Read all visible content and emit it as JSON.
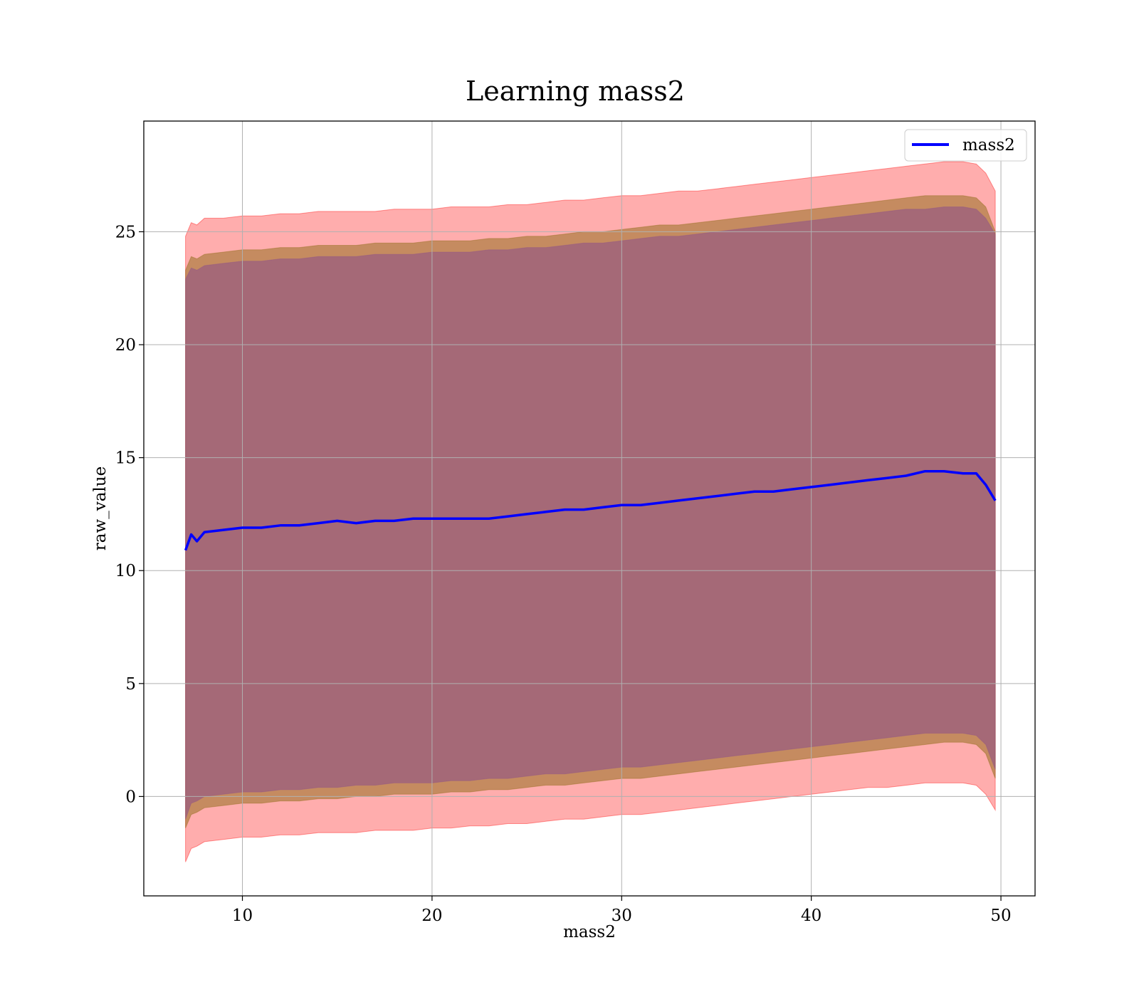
{
  "chart_data": {
    "type": "line",
    "title": "Learning mass2",
    "xlabel": "mass2",
    "ylabel": "raw_value",
    "xlim": [
      4.8,
      51.8
    ],
    "ylim": [
      -4.4,
      29.9
    ],
    "x_ticks": [
      10,
      20,
      30,
      40,
      50
    ],
    "y_ticks": [
      0,
      5,
      10,
      15,
      20,
      25
    ],
    "grid": true,
    "legend_position": "top-right",
    "colors": {
      "line": "#0000ff",
      "band_outer": "#ff0000",
      "band_middle": "#8b6914",
      "band_inner": "#8b4f8b"
    },
    "series": [
      {
        "name": "mass2",
        "x": [
          7.0,
          7.3,
          7.6,
          8,
          9,
          10,
          11,
          12,
          13,
          14,
          15,
          16,
          17,
          18,
          19,
          20,
          21,
          22,
          23,
          24,
          25,
          26,
          27,
          28,
          29,
          30,
          31,
          32,
          33,
          34,
          35,
          36,
          37,
          38,
          39,
          40,
          41,
          42,
          43,
          44,
          45,
          46,
          47,
          48,
          48.7,
          49.2,
          49.7
        ],
        "y": [
          10.9,
          11.6,
          11.3,
          11.7,
          11.8,
          11.9,
          11.9,
          12.0,
          12.0,
          12.1,
          12.2,
          12.1,
          12.2,
          12.2,
          12.3,
          12.3,
          12.3,
          12.3,
          12.3,
          12.4,
          12.5,
          12.6,
          12.7,
          12.7,
          12.8,
          12.9,
          12.9,
          13.0,
          13.1,
          13.2,
          13.3,
          13.4,
          13.5,
          13.5,
          13.6,
          13.7,
          13.8,
          13.9,
          14.0,
          14.1,
          14.2,
          14.4,
          14.4,
          14.3,
          14.3,
          13.8,
          13.1
        ]
      }
    ],
    "bands": [
      {
        "x": [
          7.0,
          7.3,
          7.6,
          8,
          9,
          10,
          11,
          12,
          13,
          14,
          15,
          16,
          17,
          18,
          19,
          20,
          21,
          22,
          23,
          24,
          25,
          26,
          27,
          28,
          29,
          30,
          31,
          32,
          33,
          34,
          35,
          36,
          37,
          38,
          39,
          40,
          41,
          42,
          43,
          44,
          45,
          46,
          47,
          48,
          48.7,
          49.2,
          49.7
        ],
        "upper": [
          24.8,
          25.4,
          25.3,
          25.6,
          25.6,
          25.7,
          25.7,
          25.8,
          25.8,
          25.9,
          25.9,
          25.9,
          25.9,
          26.0,
          26.0,
          26.0,
          26.1,
          26.1,
          26.1,
          26.2,
          26.2,
          26.3,
          26.4,
          26.4,
          26.5,
          26.6,
          26.6,
          26.7,
          26.8,
          26.8,
          26.9,
          27.0,
          27.1,
          27.2,
          27.3,
          27.4,
          27.5,
          27.6,
          27.7,
          27.8,
          27.9,
          28.0,
          28.1,
          28.1,
          28.0,
          27.6,
          26.8
        ],
        "lower": [
          -2.9,
          -2.3,
          -2.2,
          -2.0,
          -1.9,
          -1.8,
          -1.8,
          -1.7,
          -1.7,
          -1.6,
          -1.6,
          -1.6,
          -1.5,
          -1.5,
          -1.5,
          -1.4,
          -1.4,
          -1.3,
          -1.3,
          -1.2,
          -1.2,
          -1.1,
          -1.0,
          -1.0,
          -0.9,
          -0.8,
          -0.8,
          -0.7,
          -0.6,
          -0.5,
          -0.4,
          -0.3,
          -0.2,
          -0.1,
          0.0,
          0.1,
          0.2,
          0.3,
          0.4,
          0.4,
          0.5,
          0.6,
          0.6,
          0.6,
          0.5,
          0.1,
          -0.6
        ]
      },
      {
        "x": [
          7.0,
          7.3,
          7.6,
          8,
          9,
          10,
          11,
          12,
          13,
          14,
          15,
          16,
          17,
          18,
          19,
          20,
          21,
          22,
          23,
          24,
          25,
          26,
          27,
          28,
          29,
          30,
          31,
          32,
          33,
          34,
          35,
          36,
          37,
          38,
          39,
          40,
          41,
          42,
          43,
          44,
          45,
          46,
          47,
          48,
          48.7,
          49.2,
          49.7
        ],
        "upper": [
          23.3,
          23.9,
          23.8,
          24.0,
          24.1,
          24.2,
          24.2,
          24.3,
          24.3,
          24.4,
          24.4,
          24.4,
          24.5,
          24.5,
          24.5,
          24.6,
          24.6,
          24.6,
          24.7,
          24.7,
          24.8,
          24.8,
          24.9,
          25.0,
          25.0,
          25.1,
          25.2,
          25.3,
          25.3,
          25.4,
          25.5,
          25.6,
          25.7,
          25.8,
          25.9,
          26.0,
          26.1,
          26.2,
          26.3,
          26.4,
          26.5,
          26.6,
          26.6,
          26.6,
          26.5,
          26.1,
          25.0
        ],
        "lower": [
          -1.4,
          -0.8,
          -0.7,
          -0.5,
          -0.4,
          -0.3,
          -0.3,
          -0.2,
          -0.2,
          -0.1,
          -0.1,
          0.0,
          0.0,
          0.1,
          0.1,
          0.1,
          0.2,
          0.2,
          0.3,
          0.3,
          0.4,
          0.5,
          0.5,
          0.6,
          0.7,
          0.8,
          0.8,
          0.9,
          1.0,
          1.1,
          1.2,
          1.3,
          1.4,
          1.5,
          1.6,
          1.7,
          1.8,
          1.9,
          2.0,
          2.1,
          2.2,
          2.3,
          2.4,
          2.4,
          2.3,
          1.9,
          0.8
        ]
      },
      {
        "x": [
          7.0,
          7.3,
          7.6,
          8,
          9,
          10,
          11,
          12,
          13,
          14,
          15,
          16,
          17,
          18,
          19,
          20,
          21,
          22,
          23,
          24,
          25,
          26,
          27,
          28,
          29,
          30,
          31,
          32,
          33,
          34,
          35,
          36,
          37,
          38,
          39,
          40,
          41,
          42,
          43,
          44,
          45,
          46,
          47,
          48,
          48.7,
          49.2,
          49.7
        ],
        "upper": [
          22.9,
          23.4,
          23.3,
          23.5,
          23.6,
          23.7,
          23.7,
          23.8,
          23.8,
          23.9,
          23.9,
          23.9,
          24.0,
          24.0,
          24.0,
          24.1,
          24.1,
          24.1,
          24.2,
          24.2,
          24.3,
          24.3,
          24.4,
          24.5,
          24.5,
          24.6,
          24.7,
          24.8,
          24.8,
          24.9,
          25.0,
          25.1,
          25.2,
          25.3,
          25.4,
          25.5,
          25.6,
          25.7,
          25.8,
          25.9,
          26.0,
          26.0,
          26.1,
          26.1,
          26.0,
          25.6,
          24.9
        ],
        "lower": [
          -1.0,
          -0.3,
          -0.2,
          0.0,
          0.1,
          0.2,
          0.2,
          0.3,
          0.3,
          0.4,
          0.4,
          0.5,
          0.5,
          0.6,
          0.6,
          0.6,
          0.7,
          0.7,
          0.8,
          0.8,
          0.9,
          1.0,
          1.0,
          1.1,
          1.2,
          1.3,
          1.3,
          1.4,
          1.5,
          1.6,
          1.7,
          1.8,
          1.9,
          2.0,
          2.1,
          2.2,
          2.3,
          2.4,
          2.5,
          2.6,
          2.7,
          2.8,
          2.8,
          2.8,
          2.7,
          2.3,
          1.2
        ]
      }
    ],
    "legend": [
      {
        "label": "mass2"
      }
    ]
  }
}
